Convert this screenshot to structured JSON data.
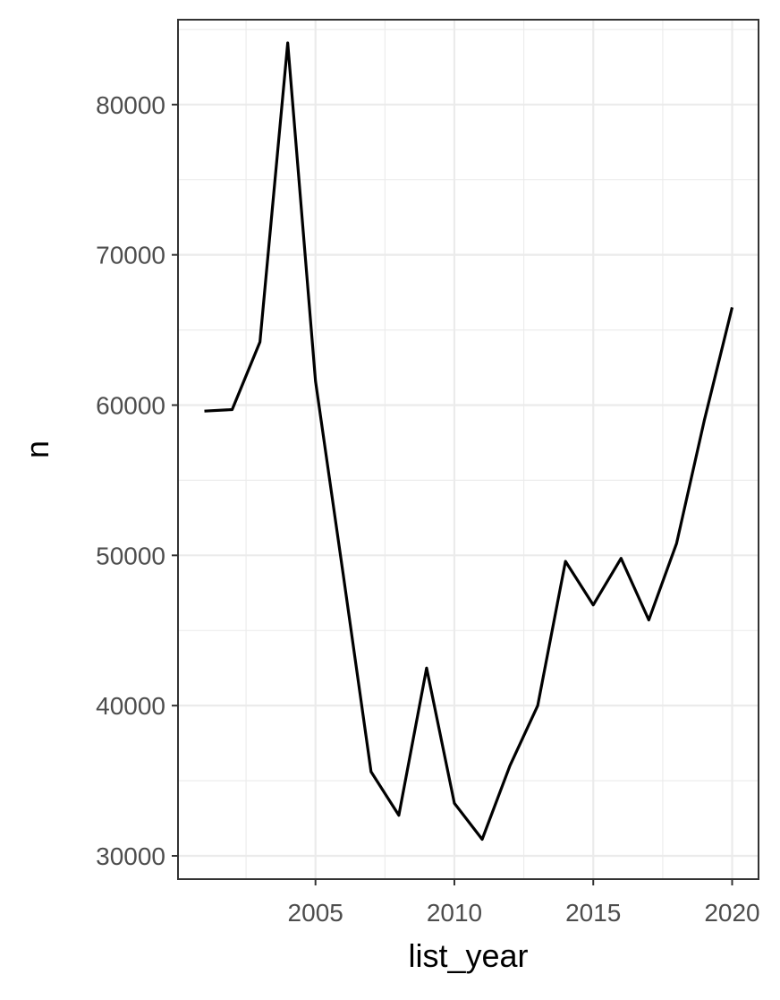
{
  "chart_data": {
    "type": "line",
    "title": "",
    "xlabel": "list_year",
    "ylabel": "n",
    "xlim": [
      2000.05,
      2020.95
    ],
    "ylim": [
      28450,
      85650
    ],
    "x_ticks": [
      2005,
      2010,
      2015,
      2020
    ],
    "x_tick_labels": [
      "2005",
      "2010",
      "2015",
      "2020"
    ],
    "x_minor_ticks": [
      2002.5,
      2007.5,
      2012.5,
      2017.5
    ],
    "y_ticks": [
      30000,
      40000,
      50000,
      60000,
      70000,
      80000
    ],
    "y_tick_labels": [
      "30000",
      "40000",
      "50000",
      "60000",
      "70000",
      "80000"
    ],
    "y_minor_ticks": [
      35000,
      45000,
      55000,
      65000,
      75000,
      85000
    ],
    "grid": true,
    "theme": "bw",
    "line_color": "#000000",
    "series": [
      {
        "x": [
          2001,
          2002,
          2003,
          2004,
          2005,
          2006,
          2007,
          2008,
          2009,
          2010,
          2011,
          2012,
          2013,
          2014,
          2015,
          2016,
          2017,
          2018,
          2019,
          2020
        ],
        "y": [
          59600,
          59700,
          64200,
          84100,
          61600,
          48700,
          35600,
          32700,
          42500,
          33500,
          31100,
          36000,
          40000,
          49600,
          46700,
          49800,
          45700,
          50800,
          59000,
          66500
        ]
      }
    ]
  }
}
